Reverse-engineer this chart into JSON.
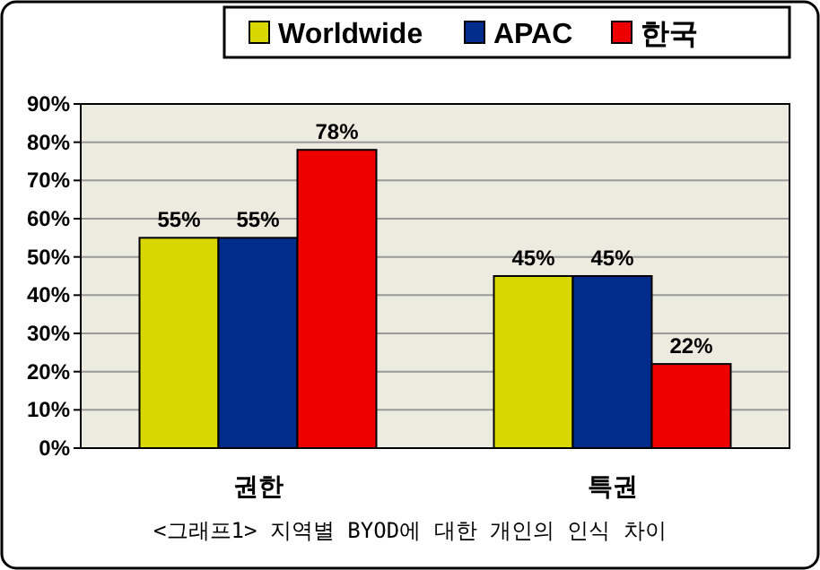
{
  "chart_data": {
    "type": "bar",
    "categories": [
      "권한",
      "특권"
    ],
    "series": [
      {
        "name": "Worldwide",
        "color": "#d8d800",
        "values": [
          55,
          45
        ],
        "value_labels": [
          "55%",
          "45%"
        ]
      },
      {
        "name": "APAC",
        "color": "#002c8c",
        "values": [
          55,
          45
        ],
        "value_labels": [
          "55%",
          "45%"
        ]
      },
      {
        "name": "한국",
        "color": "#ee0000",
        "values": [
          78,
          22
        ],
        "value_labels": [
          "78%",
          "22%"
        ]
      }
    ],
    "ylim": [
      0,
      90
    ],
    "yticks": [
      {
        "value": 0,
        "label": "0%"
      },
      {
        "value": 10,
        "label": "10%"
      },
      {
        "value": 20,
        "label": "20%"
      },
      {
        "value": 30,
        "label": "30%"
      },
      {
        "value": 40,
        "label": "40%"
      },
      {
        "value": 50,
        "label": "50%"
      },
      {
        "value": 60,
        "label": "60%"
      },
      {
        "value": 70,
        "label": "70%"
      },
      {
        "value": 80,
        "label": "80%"
      },
      {
        "value": 90,
        "label": "90%"
      }
    ],
    "grid": "y",
    "legend": "top",
    "annotations": [
      "<그래프1> 지역별 BYOD에 대한 개인의 인식 차이"
    ]
  }
}
